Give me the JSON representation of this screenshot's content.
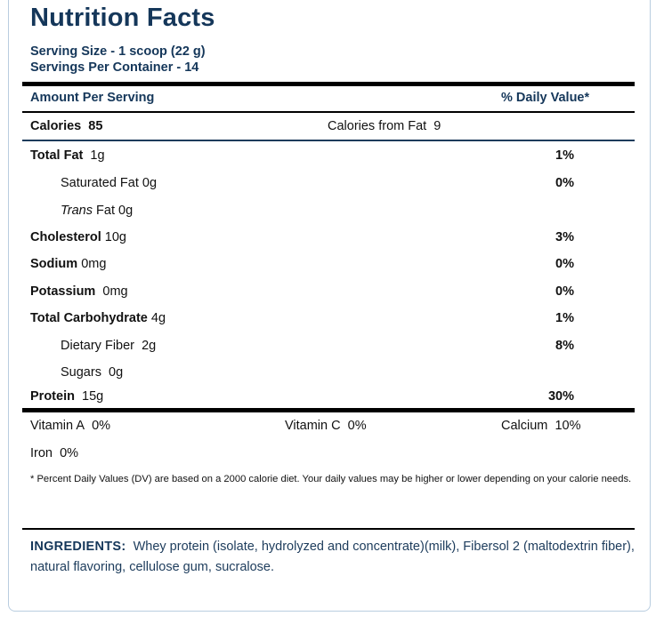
{
  "label": {
    "title": "Nutrition Facts",
    "serving_size": "Serving Size - 1 scoop (22 g)",
    "servings_per_container": "Servings Per Container - 14",
    "amount_per_serving": "Amount Per Serving",
    "daily_value_header": "% Daily Value*",
    "calories_label": "Calories",
    "calories_value": "85",
    "calories_from_fat_label": "Calories from Fat",
    "calories_from_fat_value": "9",
    "nutrients": [
      {
        "name": "Total Fat",
        "amount": "1g",
        "dv": "1%"
      },
      {
        "name": "Saturated Fat",
        "amount": "0g",
        "dv": "0%"
      },
      {
        "name_italic": "Trans",
        "name": "Fat",
        "amount": "0g",
        "dv": ""
      },
      {
        "name": "Cholesterol",
        "amount": "10g",
        "dv": "3%"
      },
      {
        "name": "Sodium",
        "amount": "0mg",
        "dv": "0%"
      },
      {
        "name": "Potassium",
        "amount": "0mg",
        "dv": "0%"
      },
      {
        "name": "Total Carbohydrate",
        "amount": "4g",
        "dv": "1%"
      },
      {
        "name": "Dietary Fiber",
        "amount": "2g",
        "dv": "8%"
      },
      {
        "name": "Sugars",
        "amount": "0g",
        "dv": ""
      },
      {
        "name": "Protein",
        "amount": "15g",
        "dv": "30%"
      }
    ],
    "vitamins": [
      {
        "name": "Vitamin A",
        "value": "0%"
      },
      {
        "name": "Vitamin C",
        "value": "0%"
      },
      {
        "name": "Calcium",
        "value": "10%"
      },
      {
        "name": "Iron",
        "value": "0%"
      }
    ],
    "footnote": "* Percent Daily Values (DV) are based on a 2000 calorie diet. Your daily values may be higher or lower depending on your calorie needs.",
    "ingredients_label": "INGREDIENTS:",
    "ingredients_text": "Whey protein (isolate, hydrolyzed and concentrate)(milk), Fibersol 2 (maltodextrin fiber), natural flavoring, cellulose gum, sucralose."
  },
  "colors": {
    "heading_navy": "#15375a",
    "panel_border": "#b9cde0"
  }
}
